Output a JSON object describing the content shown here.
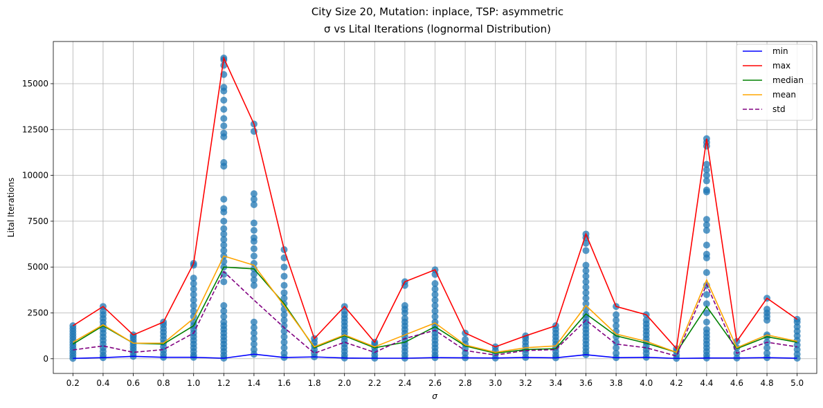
{
  "chart_data": {
    "type": "scatter",
    "title_line1": "City Size 20, Mutation: inplace, TSP: asymmetric",
    "title_line2": "σ vs Lital Iterations (lognormal Distribution)",
    "xlabel": "σ",
    "ylabel": "Lital Iterations",
    "x": [
      0.2,
      0.4,
      0.6,
      0.8,
      1.0,
      1.2,
      1.4,
      1.6,
      1.8,
      2.0,
      2.2,
      2.4,
      2.6,
      2.8,
      3.0,
      3.2,
      3.4,
      3.6,
      3.8,
      4.0,
      4.2,
      4.4,
      4.6,
      4.8,
      5.0
    ],
    "x_tick_labels": [
      "0.2",
      "0.4",
      "0.6",
      "0.8",
      "1.0",
      "1.2",
      "1.4",
      "1.6",
      "1.8",
      "2.0",
      "2.2",
      "2.4",
      "2.6",
      "2.8",
      "3.0",
      "3.2",
      "3.4",
      "3.6",
      "3.8",
      "4.0",
      "4.2",
      "4.4",
      "4.6",
      "4.8",
      "5.0"
    ],
    "xlim": [
      0.07,
      5.13
    ],
    "ylim": [
      -800,
      17300
    ],
    "y_ticks": [
      0,
      2500,
      5000,
      7500,
      10000,
      12500,
      15000
    ],
    "y_tick_labels": [
      "0",
      "2500",
      "5000",
      "7500",
      "10000",
      "12500",
      "15000"
    ],
    "grid": true,
    "legend_position": "top-right",
    "series": [
      {
        "name": "min",
        "color": "#0000ff",
        "dash": "solid",
        "values": [
          20,
          60,
          130,
          80,
          80,
          30,
          250,
          70,
          100,
          40,
          30,
          30,
          60,
          50,
          40,
          70,
          50,
          220,
          60,
          80,
          20,
          40,
          40,
          60,
          30
        ]
      },
      {
        "name": "max",
        "color": "#ff0000",
        "dash": "solid",
        "values": [
          1800,
          2850,
          1300,
          2000,
          5200,
          16400,
          12800,
          5950,
          1100,
          2850,
          900,
          4200,
          4850,
          1400,
          650,
          1250,
          1800,
          6800,
          2850,
          2400,
          550,
          12000,
          950,
          3300,
          2150
        ]
      },
      {
        "name": "median",
        "color": "#008000",
        "dash": "solid",
        "values": [
          800,
          1800,
          850,
          800,
          1800,
          5000,
          4900,
          3000,
          600,
          1250,
          600,
          900,
          1750,
          700,
          300,
          500,
          550,
          2450,
          1250,
          850,
          350,
          2850,
          550,
          1200,
          900
        ]
      },
      {
        "name": "mean",
        "color": "#ffa500",
        "dash": "solid",
        "values": [
          900,
          1850,
          850,
          850,
          2200,
          5600,
          5100,
          2900,
          650,
          1300,
          650,
          1300,
          1950,
          750,
          350,
          600,
          700,
          2900,
          1350,
          950,
          350,
          4300,
          600,
          1300,
          950
        ]
      },
      {
        "name": "std",
        "color": "#800080",
        "dash": "dashed",
        "values": [
          480,
          700,
          350,
          500,
          1400,
          4750,
          3200,
          1700,
          300,
          900,
          350,
          1100,
          1550,
          450,
          200,
          450,
          500,
          2100,
          800,
          600,
          150,
          4050,
          300,
          900,
          650
        ]
      }
    ],
    "scatter": {
      "color": "#1f77b4",
      "points": [
        [
          [
            20,
            150,
            300,
            450,
            600,
            750,
            900,
            1050,
            1200,
            1350,
            1500,
            1650,
            1800
          ]
        ],
        [
          [
            60,
            200,
            400,
            600,
            800,
            1000,
            1200,
            1400,
            1600,
            1800,
            2000,
            2200,
            2400,
            2600,
            2850
          ]
        ],
        [
          [
            130,
            300,
            450,
            600,
            750,
            900,
            1050,
            1200,
            1300
          ]
        ],
        [
          [
            80,
            250,
            450,
            650,
            850,
            1050,
            1250,
            1450,
            1650,
            1850,
            2000
          ]
        ],
        [
          [
            80,
            200,
            400,
            600,
            800,
            1000,
            1200,
            1400,
            1600,
            1800,
            2000,
            2300,
            2600,
            2900,
            3200,
            3500,
            3800,
            4100,
            4400,
            5100,
            5200
          ]
        ],
        [
          [
            30,
            200,
            400,
            600,
            800,
            1000,
            1200,
            1400,
            1600,
            1800,
            2000,
            2300,
            2600,
            2900,
            4200,
            4600,
            5000,
            5300,
            5600,
            5900,
            6200,
            6500,
            6800,
            7100,
            7500,
            8000,
            8200,
            8700,
            10500,
            10700,
            12100,
            12300,
            12700,
            13100,
            13600,
            14100,
            14600,
            14800,
            15500,
            16000,
            16300,
            16400
          ]
        ],
        [
          [
            250,
            500,
            800,
            1100,
            1400,
            1700,
            2000,
            4000,
            4300,
            4600,
            4900,
            5200,
            5600,
            6000,
            6400,
            6600,
            7000,
            7400,
            8400,
            8700,
            9000,
            12400,
            12800
          ]
        ],
        [
          [
            70,
            300,
            600,
            900,
            1200,
            1500,
            1800,
            2100,
            2400,
            2700,
            3000,
            3300,
            3600,
            4000,
            4500,
            5000,
            5500,
            5950
          ]
        ],
        [
          [
            100,
            300,
            500,
            700,
            900,
            1100
          ]
        ],
        [
          [
            40,
            200,
            400,
            600,
            800,
            1000,
            1200,
            1400,
            1600,
            1800,
            2000,
            2200,
            2400,
            2600,
            2850
          ]
        ],
        [
          [
            30,
            200,
            400,
            600,
            800,
            900
          ]
        ],
        [
          [
            30,
            200,
            400,
            600,
            800,
            1000,
            1200,
            1400,
            1600,
            1800,
            2000,
            2200,
            2500,
            2700,
            2900,
            4000,
            4200
          ]
        ],
        [
          [
            60,
            200,
            400,
            600,
            800,
            1000,
            1200,
            1400,
            1600,
            1800,
            2000,
            2300,
            2600,
            2900,
            3200,
            3500,
            3800,
            4100,
            4600,
            4850
          ]
        ],
        [
          [
            50,
            300,
            550,
            800,
            1050,
            1400
          ]
        ],
        [
          [
            40,
            250,
            450,
            650
          ]
        ],
        [
          [
            70,
            300,
            500,
            700,
            900,
            1100,
            1250
          ]
        ],
        [
          [
            50,
            200,
            400,
            600,
            800,
            1000,
            1200,
            1400,
            1600,
            1800
          ]
        ],
        [
          [
            220,
            400,
            600,
            800,
            1000,
            1200,
            1400,
            1600,
            1800,
            2000,
            2200,
            2400,
            2700,
            3000,
            3300,
            3600,
            3900,
            4200,
            4500,
            4800,
            5100,
            5900,
            6300,
            6600,
            6800
          ]
        ],
        [
          [
            60,
            300,
            600,
            900,
            1200,
            1500,
            1800,
            2100,
            2400,
            2850
          ]
        ],
        [
          [
            80,
            300,
            500,
            700,
            900,
            1100,
            1300,
            1500,
            1700,
            1900,
            2100,
            2400
          ]
        ],
        [
          [
            20,
            200,
            400,
            550
          ]
        ],
        [
          [
            40,
            200,
            400,
            600,
            800,
            1000,
            1200,
            1400,
            1600,
            2000,
            2500,
            3000,
            3500,
            4000,
            4700,
            5500,
            5700,
            6200,
            7000,
            7300,
            7600,
            9100,
            9200,
            9700,
            10000,
            10300,
            10600,
            11600,
            11800,
            12000
          ]
        ],
        [
          [
            40,
            300,
            600,
            950
          ]
        ],
        [
          [
            60,
            300,
            600,
            900,
            1200,
            1300,
            2100,
            2300,
            2500,
            2700,
            3300
          ]
        ],
        [
          [
            30,
            250,
            500,
            750,
            1000,
            1250,
            1500,
            1750,
            2000,
            2150
          ]
        ]
      ]
    }
  }
}
